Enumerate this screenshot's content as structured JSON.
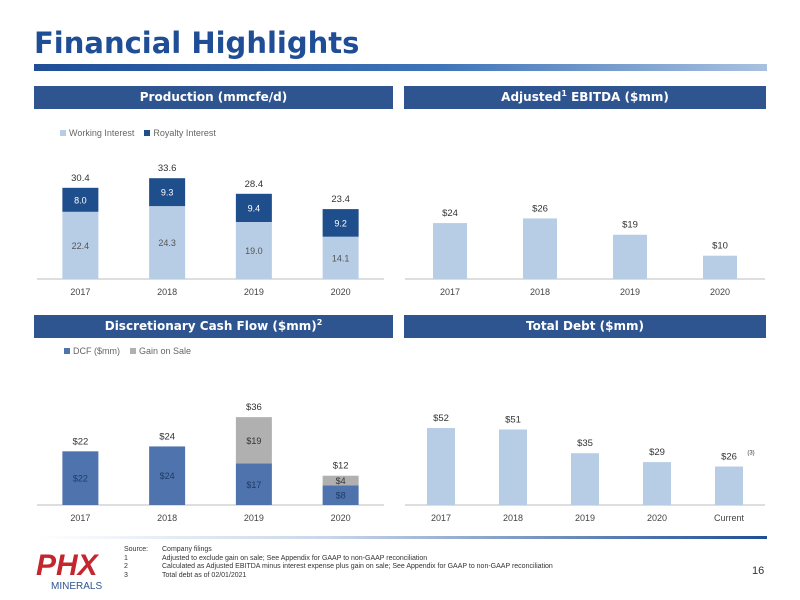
{
  "page": {
    "title": "Financial Highlights",
    "page_number": "16"
  },
  "colors": {
    "header_bg": "#2e5590",
    "title": "#1f4e96",
    "light_blue": "#b7cde6",
    "dark_blue": "#1f4e8c",
    "mid_blue": "#4f74ad",
    "gray": "#b0b0b0"
  },
  "panels": {
    "production": {
      "title": "Production (mmcfe/d)"
    },
    "ebitda": {
      "title_pre": "Adjusted",
      "title_sup": "1",
      "title_post": " EBITDA ($mm)"
    },
    "dcf": {
      "title_pre": "Discretionary Cash Flow ($mm)",
      "title_sup": "2"
    },
    "debt": {
      "title": "Total Debt ($mm)"
    }
  },
  "chart_data": [
    {
      "id": "production",
      "type": "bar",
      "stacked": true,
      "categories": [
        "2017",
        "2018",
        "2019",
        "2020"
      ],
      "series": [
        {
          "name": "Working Interest",
          "values": [
            22.4,
            24.3,
            19.0,
            14.1
          ],
          "labels": [
            "22.4",
            "24.3",
            "19.0",
            "14.1"
          ]
        },
        {
          "name": "Royalty Interest",
          "values": [
            8.0,
            9.3,
            9.4,
            9.2
          ],
          "labels": [
            "8.0",
            "9.3",
            "9.4",
            "9.2"
          ]
        }
      ],
      "totals": [
        "30.4",
        "33.6",
        "28.4",
        "23.4"
      ],
      "legend": "top-left"
    },
    {
      "id": "ebitda",
      "type": "bar",
      "categories": [
        "2017",
        "2018",
        "2019",
        "2020"
      ],
      "values": [
        24,
        26,
        19,
        10
      ],
      "labels": [
        "$24",
        "$26",
        "$19",
        "$10"
      ]
    },
    {
      "id": "dcf",
      "type": "bar",
      "stacked": true,
      "categories": [
        "2017",
        "2018",
        "2019",
        "2020"
      ],
      "series": [
        {
          "name": "DCF ($mm)",
          "values": [
            22,
            24,
            17,
            8
          ],
          "labels": [
            "$22",
            "$24",
            "$17",
            "$8"
          ]
        },
        {
          "name": "Gain on Sale",
          "values": [
            0,
            0,
            19,
            4
          ],
          "labels": [
            "",
            "",
            "$19",
            "$4"
          ]
        }
      ],
      "totals": [
        "$22",
        "$24",
        "$36",
        "$12"
      ],
      "legend": "top-left"
    },
    {
      "id": "debt",
      "type": "bar",
      "categories": [
        "2017",
        "2018",
        "2019",
        "2020",
        "Current"
      ],
      "values": [
        52,
        51,
        35,
        29,
        26
      ],
      "labels": [
        "$52",
        "$51",
        "$35",
        "$29",
        "$26"
      ],
      "annotation": "(3)"
    }
  ],
  "footnotes": [
    {
      "key": "Source:",
      "text": "Company filings"
    },
    {
      "key": "1",
      "text": "Adjusted to exclude gain on sale; See Appendix for GAAP to non-GAAP reconciliation"
    },
    {
      "key": "2",
      "text": "Calculated as Adjusted EBITDA minus interest expense plus gain on sale; See Appendix for GAAP to non-GAAP reconciliation"
    },
    {
      "key": "3",
      "text": "Total debt as of 02/01/2021"
    }
  ],
  "logo": {
    "text": "PHX",
    "subtext": "MINERALS"
  }
}
